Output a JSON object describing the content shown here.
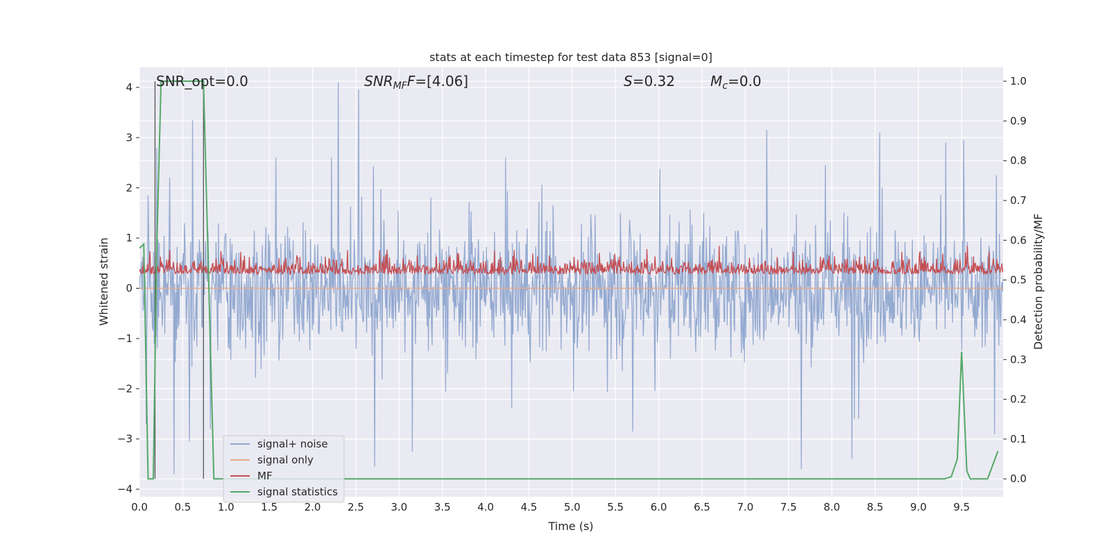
{
  "chart_data": {
    "type": "line",
    "title": "stats at each timestep for test data 853 [signal=0]",
    "xlabel": "Time (s)",
    "ylabel_left": "Whitened strain",
    "ylabel_right": "Detection probability/MF",
    "xlim": [
      0.0,
      9.98
    ],
    "ylim_left": [
      -4.15,
      4.4
    ],
    "ylim_right": [
      -0.045,
      1.035
    ],
    "x_ticks": [
      0.0,
      0.5,
      1.0,
      1.5,
      2.0,
      2.5,
      3.0,
      3.5,
      4.0,
      4.5,
      5.0,
      5.5,
      6.0,
      6.5,
      7.0,
      7.5,
      8.0,
      8.5,
      9.0,
      9.5
    ],
    "x_tick_labels": [
      "0.0",
      "0.5",
      "1.0",
      "1.5",
      "2.0",
      "2.5",
      "3.0",
      "3.5",
      "4.0",
      "4.5",
      "5.0",
      "5.5",
      "6.0",
      "6.5",
      "7.0",
      "7.5",
      "8.0",
      "8.5",
      "9.0",
      "9.5"
    ],
    "y_ticks_left": [
      4,
      3,
      2,
      1,
      0,
      -1,
      -2,
      -3,
      -4
    ],
    "y_tick_labels_left": [
      "4",
      "3",
      "2",
      "1",
      "0",
      "−1",
      "−2",
      "−3",
      "−4"
    ],
    "y_ticks_right": [
      1.0,
      0.9,
      0.8,
      0.7,
      0.6,
      0.5,
      0.4,
      0.3,
      0.2,
      0.1,
      0.0
    ],
    "y_tick_labels_right": [
      "1.0",
      "0.9",
      "0.8",
      "0.7",
      "0.6",
      "0.5",
      "0.4",
      "0.3",
      "0.2",
      "0.1",
      "0.0"
    ],
    "grid": true,
    "legend_position": "lower-left",
    "annotations": {
      "snr_opt": "SNR_opt=0.0",
      "snr_mf_sym": "SNR",
      "snr_mf_sub": "MF",
      "snr_mf_val": "=[4.06]",
      "s_sym": "S",
      "s_val": "=0.32",
      "mc_sym": "M",
      "mc_sub": "c",
      "mc_val": "=0.0"
    },
    "vertical_lines_x": [
      0.18,
      0.74
    ],
    "series": [
      {
        "name": "signal+ noise",
        "color": "#8fa6cf",
        "axis": "left",
        "kind": "noise",
        "t_range": [
          0.0,
          9.98
        ],
        "samples": 1400,
        "spikes": [
          [
            0.2,
            2.8
          ],
          [
            0.35,
            2.2
          ],
          [
            0.61,
            3.35
          ],
          [
            2.3,
            4.1
          ],
          [
            2.53,
            3.95
          ],
          [
            7.25,
            3.15
          ],
          [
            8.55,
            3.1
          ],
          [
            9.32,
            2.9
          ],
          [
            9.52,
            2.95
          ],
          [
            9.9,
            2.25
          ],
          [
            0.4,
            -3.7
          ],
          [
            0.58,
            -3.05
          ],
          [
            2.72,
            -3.55
          ],
          [
            3.15,
            -3.25
          ],
          [
            5.7,
            -2.85
          ],
          [
            7.65,
            -3.6
          ],
          [
            8.23,
            -3.4
          ],
          [
            9.88,
            -2.9
          ],
          [
            0.08,
            -2.7
          ],
          [
            0.82,
            -2.8
          ]
        ]
      },
      {
        "name": "signal only",
        "color": "#e8a98c",
        "axis": "left",
        "kind": "flat",
        "value": 0.0
      },
      {
        "name": "MF",
        "color": "#c44e52",
        "axis": "left",
        "kind": "mf",
        "t_range": [
          0.0,
          9.98
        ],
        "samples": 1400
      },
      {
        "name": "signal statistics",
        "color": "#55a868",
        "axis": "right",
        "kind": "line",
        "x": [
          0.0,
          0.05,
          0.1,
          0.16,
          0.2,
          0.25,
          0.5,
          0.74,
          0.86,
          0.9,
          1.0,
          9.3,
          9.38,
          9.45,
          9.5,
          9.56,
          9.6,
          9.8,
          9.92
        ],
        "y": [
          0.58,
          0.59,
          0.0,
          0.0,
          0.58,
          1.0,
          1.0,
          1.0,
          0.0,
          0.0,
          0.0,
          0.0,
          0.005,
          0.05,
          0.32,
          0.02,
          0.0,
          0.0,
          0.07
        ]
      }
    ]
  }
}
